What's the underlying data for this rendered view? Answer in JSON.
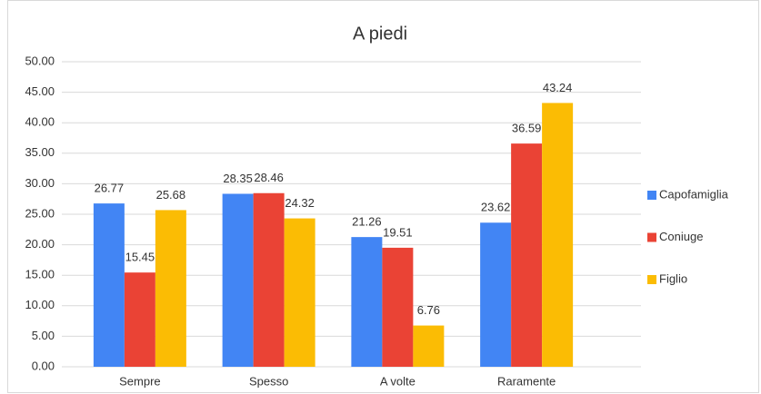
{
  "chart_data": {
    "type": "bar",
    "title": "A piedi",
    "categories": [
      "Sempre",
      "Spesso",
      "A volte",
      "Raramente"
    ],
    "series": [
      {
        "name": "Capofamiglia",
        "color": "#4285f4",
        "values": [
          26.77,
          28.35,
          21.26,
          23.62
        ]
      },
      {
        "name": "Coniuge",
        "color": "#ea4335",
        "values": [
          15.45,
          28.46,
          19.51,
          36.59
        ]
      },
      {
        "name": "Figlio",
        "color": "#fbbc04",
        "values": [
          25.68,
          24.32,
          6.76,
          43.24
        ]
      }
    ],
    "ylim": [
      0,
      50
    ],
    "yticks": [
      {
        "value": 0,
        "label": "0.00"
      },
      {
        "value": 5,
        "label": "5.00"
      },
      {
        "value": 10,
        "label": "10.00"
      },
      {
        "value": 15,
        "label": "15.00"
      },
      {
        "value": 20,
        "label": "20.00"
      },
      {
        "value": 25,
        "label": "25.00"
      },
      {
        "value": 30,
        "label": "30.00"
      },
      {
        "value": 35,
        "label": "35.00"
      },
      {
        "value": 40,
        "label": "40.00"
      },
      {
        "value": 45,
        "label": "45.00"
      },
      {
        "value": 50,
        "label": "50.00"
      }
    ],
    "grid": true,
    "legend": "right"
  }
}
